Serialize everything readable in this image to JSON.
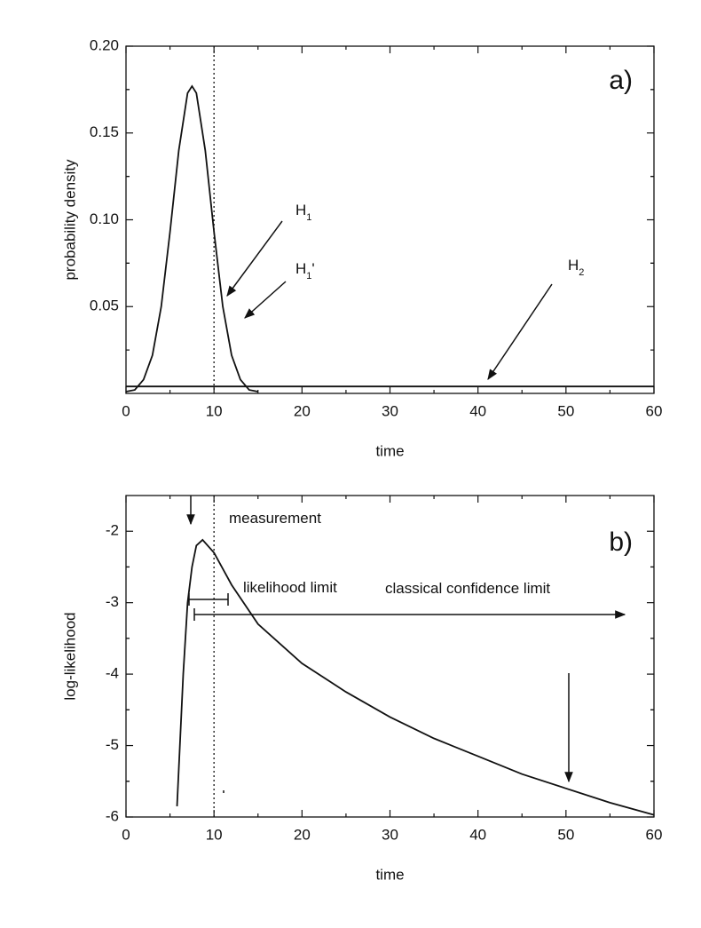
{
  "chart_data": [
    {
      "type": "line",
      "panel_label": "a)",
      "xlabel": "time",
      "ylabel": "probability density",
      "xlim": [
        0,
        60
      ],
      "xticks": [
        0,
        10,
        20,
        30,
        40,
        50,
        60
      ],
      "ylim": [
        0,
        0.2
      ],
      "yticks": [
        0.05,
        {
          "value": 0.1,
          "label": "0.10"
        },
        0.15,
        {
          "value": 0.2,
          "label": "0.20"
        }
      ],
      "vline": 10,
      "series": [
        {
          "color": "#111111",
          "x": [
            0,
            1,
            2,
            3,
            4,
            5,
            6,
            7,
            7.5,
            8,
            9,
            10,
            11,
            12,
            13,
            14,
            15
          ],
          "values": [
            0.001,
            0.002,
            0.008,
            0.022,
            0.05,
            0.093,
            0.14,
            0.173,
            0.177,
            0.173,
            0.14,
            0.093,
            0.05,
            0.022,
            0.008,
            0.002,
            0.001
          ]
        },
        {
          "color": "#111111",
          "x": [
            0,
            60
          ],
          "values": [
            0.004,
            0.004
          ]
        }
      ],
      "annotations": [
        {
          "text": "H",
          "subscript": "1"
        },
        {
          "text": "H",
          "subscript": "1",
          "suffix": "'"
        },
        {
          "text": "H",
          "subscript": "2"
        }
      ]
    },
    {
      "type": "line",
      "panel_label": "b)",
      "xlabel": "time",
      "ylabel": "log-likelihood",
      "xlim": [
        0,
        60
      ],
      "xticks": [
        0,
        10,
        20,
        30,
        40,
        50,
        60
      ],
      "ylim": [
        -6,
        -1.5
      ],
      "yticks": [
        -6,
        -5,
        -4,
        -3,
        -2
      ],
      "vline": 10,
      "series": [
        {
          "color": "#111111",
          "x": [
            5.8,
            6.5,
            7,
            7.5,
            8,
            8.7,
            10,
            12,
            15,
            20,
            25,
            30,
            35,
            40,
            45,
            50,
            55,
            60
          ],
          "values": [
            -5.85,
            -4.0,
            -3.0,
            -2.5,
            -2.2,
            -2.12,
            -2.3,
            -2.75,
            -3.3,
            -3.85,
            -4.25,
            -4.6,
            -4.9,
            -5.15,
            -5.4,
            -5.6,
            -5.8,
            -5.97
          ]
        }
      ],
      "annotations": [
        {
          "text": "measurement"
        },
        {
          "text": "likelihood limit"
        },
        {
          "text": "classical confidence limit"
        }
      ]
    }
  ]
}
